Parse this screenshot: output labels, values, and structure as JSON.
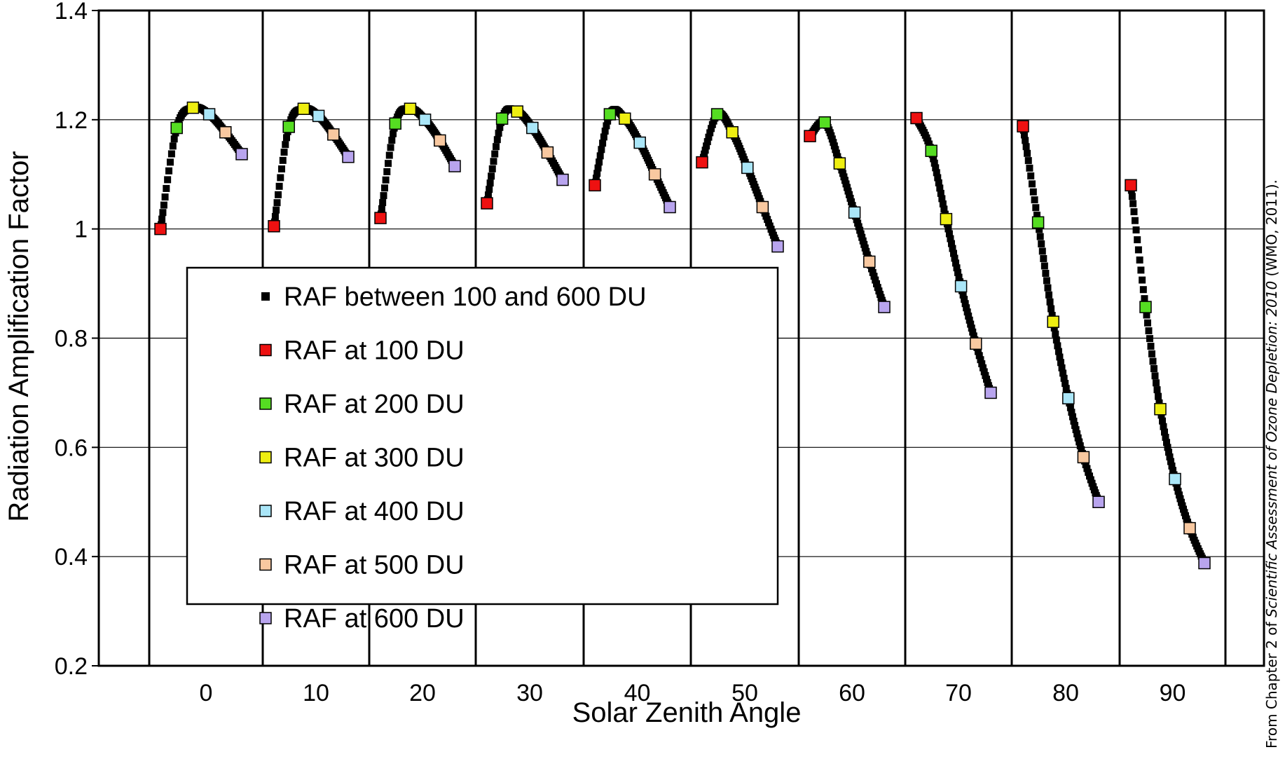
{
  "chart_data": {
    "type": "scatter",
    "xlabel": "Solar Zenith Angle",
    "ylabel": "Radiation Amplification Factor",
    "ylim": [
      0.2,
      1.4
    ],
    "yticks": [
      0.2,
      0.4,
      0.6,
      0.8,
      1,
      1.2,
      1.4
    ],
    "ytick_labels": [
      "0.2",
      "0.4",
      "0.6",
      "0.8",
      "1",
      "1.2",
      "1.4"
    ],
    "categories": [
      "0",
      "10",
      "20",
      "30",
      "40",
      "50",
      "60",
      "70",
      "80",
      "90"
    ],
    "grid": "horizontal",
    "legend_position": "center-left",
    "credit": {
      "prefix": "From Chapter 2 of ",
      "italic": "Scientific Assessment of Ozone Depletion: 2010",
      "suffix": " (WMO, 2011)."
    },
    "legend": [
      {
        "label": "RAF between 100 and 600 DU",
        "color": "#000000",
        "marker": "small"
      },
      {
        "label": "RAF at 100 DU",
        "color": "#ee1111"
      },
      {
        "label": "RAF at 200 DU",
        "color": "#55dd22"
      },
      {
        "label": "RAF at 300 DU",
        "color": "#eeee11"
      },
      {
        "label": "RAF at 400 DU",
        "color": "#aae6f8"
      },
      {
        "label": "RAF at 500 DU",
        "color": "#f8c8a0"
      },
      {
        "label": "RAF at 600 DU",
        "color": "#b8a4ee"
      }
    ],
    "ozone_du": [
      100,
      200,
      300,
      400,
      500,
      600
    ],
    "series": [
      {
        "sza": "0",
        "raf": [
          1.0,
          1.185,
          1.222,
          1.21,
          1.177,
          1.137
        ]
      },
      {
        "sza": "10",
        "raf": [
          1.005,
          1.187,
          1.22,
          1.207,
          1.173,
          1.132
        ]
      },
      {
        "sza": "20",
        "raf": [
          1.02,
          1.193,
          1.22,
          1.2,
          1.162,
          1.115
        ]
      },
      {
        "sza": "30",
        "raf": [
          1.047,
          1.202,
          1.215,
          1.185,
          1.14,
          1.09
        ]
      },
      {
        "sza": "40",
        "raf": [
          1.08,
          1.21,
          1.202,
          1.158,
          1.1,
          1.04
        ]
      },
      {
        "sza": "50",
        "raf": [
          1.122,
          1.21,
          1.177,
          1.112,
          1.04,
          0.968
        ]
      },
      {
        "sza": "60",
        "raf": [
          1.17,
          1.195,
          1.12,
          1.03,
          0.94,
          0.857
        ]
      },
      {
        "sza": "70",
        "raf": [
          1.203,
          1.143,
          1.018,
          0.895,
          0.79,
          0.7
        ]
      },
      {
        "sza": "80",
        "raf": [
          1.188,
          1.012,
          0.83,
          0.69,
          0.582,
          0.5
        ]
      },
      {
        "sza": "90",
        "raf": [
          1.08,
          0.857,
          0.67,
          0.542,
          0.452,
          0.388
        ]
      }
    ]
  }
}
